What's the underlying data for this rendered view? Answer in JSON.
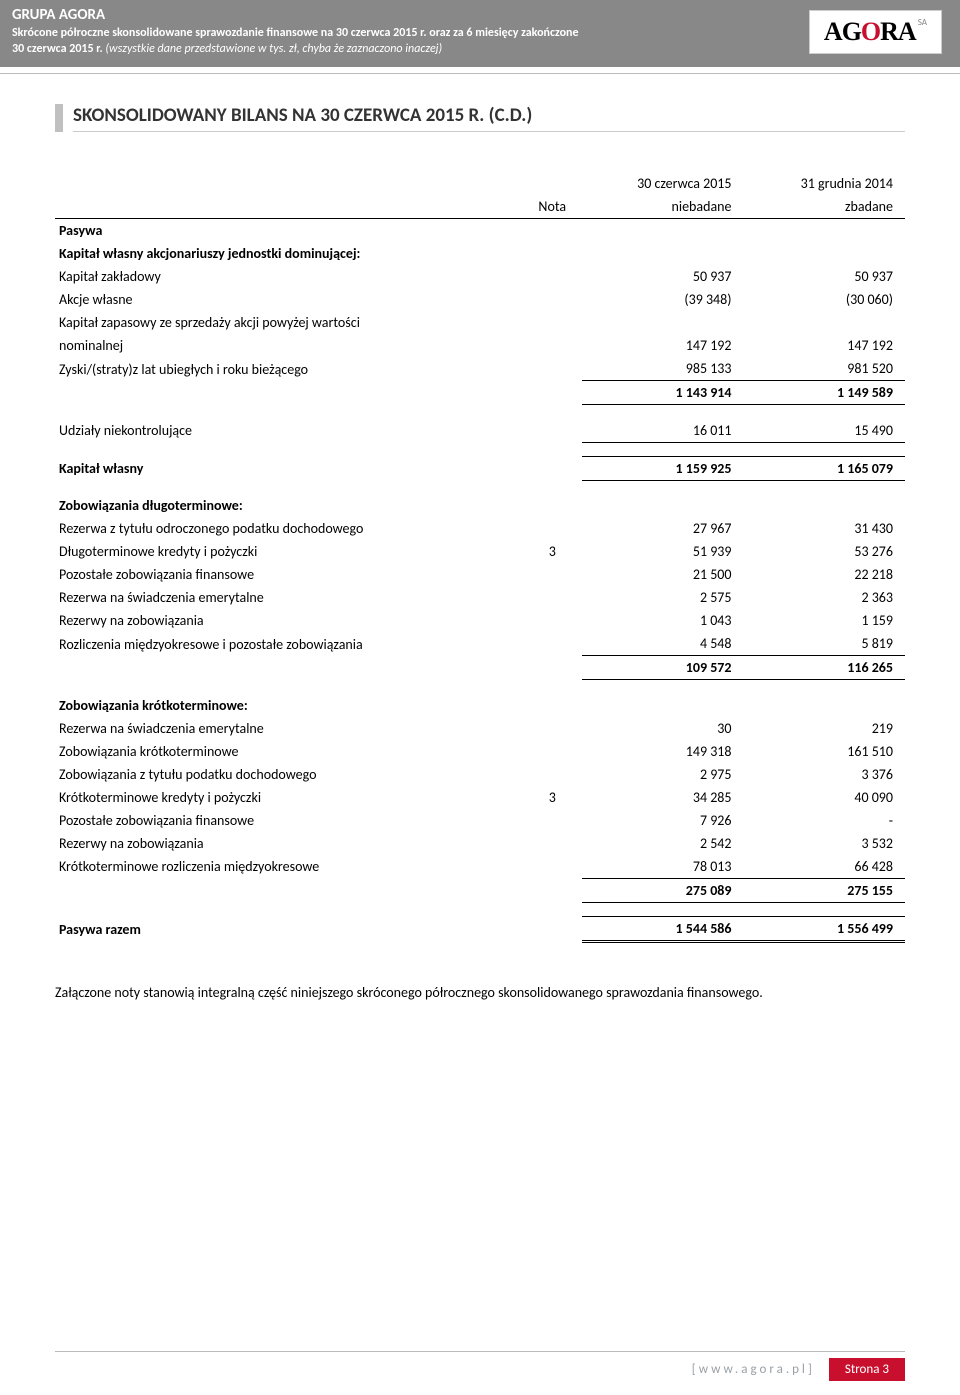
{
  "header": {
    "group": "GRUPA AGORA",
    "line1": "Skrócone półroczne skonsolidowane sprawozdanie finansowe na 30 czerwca 2015 r. oraz za 6 miesięcy zakończone",
    "line2a": "30 czerwca 2015 r. ",
    "line2b": "(wszystkie dane przedstawione w tys. zł, chyba że zaznaczono inaczej)",
    "logo_main": "AG",
    "logo_mid": "O",
    "logo_end": "RA",
    "logo_sa": "SA"
  },
  "section_title": "SKONSOLIDOWANY BILANS NA 30 CZERWCA 2015 R. (C.D.)",
  "columns": {
    "nota": "Nota",
    "col1_top": "30 czerwca 2015",
    "col1_sub": "niebadane",
    "col2_top": "31 grudnia 2014",
    "col2_sub": "zbadane"
  },
  "labels": {
    "pasywa": "Pasywa",
    "kap_wlasny_akc": "Kapitał własny akcjonariuszy jednostki dominującej:",
    "kap_zakladowy": "Kapitał zakładowy",
    "akcje_wlasne": "Akcje własne",
    "kap_zapasowy1": "Kapitał zapasowy ze sprzedaży akcji powyżej wartości",
    "kap_zapasowy2": "nominalnej",
    "zyski": "Zyski/(straty)z lat ubiegłych i roku bieżącego",
    "udzialy": "Udziały niekontrolujące",
    "kap_wlasny": "Kapitał własny",
    "zob_dlug": "Zobowiązania długoterminowe:",
    "rezerwa_podatek": "Rezerwa z tytułu odroczonego podatku dochodowego",
    "dlug_kredyty": "Długoterminowe kredyty i pożyczki",
    "poz_zob_fin_d": "Pozostałe zobowiązania finansowe",
    "rezerwa_emeryt_d": "Rezerwa na świadczenia emerytalne",
    "rezerwy_zob_d": "Rezerwy na zobowiązania",
    "rozliczenia_d": "Rozliczenia międzyokresowe i pozostałe zobowiązania",
    "zob_krotk": "Zobowiązania krótkoterminowe:",
    "rezerwa_emeryt_k": "Rezerwa na świadczenia emerytalne",
    "zob_krotk_line": "Zobowiązania krótkoterminowe",
    "zob_podatek": "Zobowiązania z tytułu podatku dochodowego",
    "krotk_kredyty": "Krótkoterminowe kredyty i pożyczki",
    "poz_zob_fin_k": "Pozostałe zobowiązania finansowe",
    "rezerwy_zob_k": "Rezerwy na zobowiązania",
    "krotk_rozlicz": "Krótkoterminowe rozliczenia międzyokresowe",
    "pasywa_razem": "Pasywa razem"
  },
  "vals": {
    "kap_zakladowy": {
      "a": "50 937",
      "b": "50 937"
    },
    "akcje_wlasne": {
      "a": "(39 348)",
      "b": "(30 060)"
    },
    "kap_zapasowy": {
      "a": "147 192",
      "b": "147 192"
    },
    "zyski": {
      "a": "985 133",
      "b": "981 520"
    },
    "sub1": {
      "a": "1 143 914",
      "b": "1 149 589"
    },
    "udzialy": {
      "a": "16 011",
      "b": "15 490"
    },
    "kap_wlasny": {
      "a": "1 159 925",
      "b": "1 165 079"
    },
    "rezerwa_podatek": {
      "a": "27 967",
      "b": "31 430"
    },
    "dlug_kredyty": {
      "n": "3",
      "a": "51 939",
      "b": "53 276"
    },
    "poz_zob_fin_d": {
      "a": "21 500",
      "b": "22 218"
    },
    "rezerwa_emeryt_d": {
      "a": "2 575",
      "b": "2 363"
    },
    "rezerwy_zob_d": {
      "a": "1 043",
      "b": "1 159"
    },
    "rozliczenia_d": {
      "a": "4 548",
      "b": "5 819"
    },
    "sub2": {
      "a": "109 572",
      "b": "116 265"
    },
    "rezerwa_emeryt_k": {
      "a": "30",
      "b": "219"
    },
    "zob_krotk_line": {
      "a": "149 318",
      "b": "161 510"
    },
    "zob_podatek": {
      "a": "2 975",
      "b": "3 376"
    },
    "krotk_kredyty": {
      "n": "3",
      "a": "34 285",
      "b": "40 090"
    },
    "poz_zob_fin_k": {
      "a": "7 926",
      "b": "-"
    },
    "rezerwy_zob_k": {
      "a": "2 542",
      "b": "3 532"
    },
    "krotk_rozlicz": {
      "a": "78 013",
      "b": "66 428"
    },
    "sub3": {
      "a": "275 089",
      "b": "275 155"
    },
    "pasywa_razem": {
      "a": "1 544 586",
      "b": "1 556 499"
    }
  },
  "footnote": "Załączone noty stanowią integralną część niniejszego skróconego półrocznego skonsolidowanego sprawozdania finansowego.",
  "footer": {
    "url": "[www.agora.pl]",
    "page": "Strona 3"
  }
}
